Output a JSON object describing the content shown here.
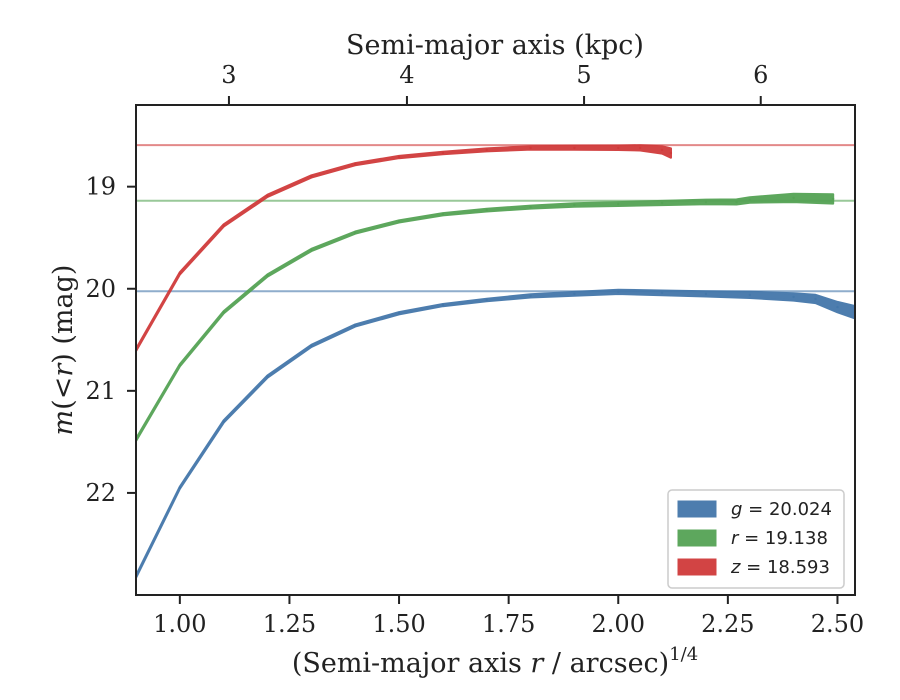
{
  "chart_data": {
    "type": "line",
    "title": "",
    "xlabel": "(Semi-major axis r / arcsec)^{1/4}",
    "xlabel_parts": [
      "(Semi-major axis ",
      "r",
      " / arcsec)",
      "1/4"
    ],
    "ylabel": "m(< r) (mag)",
    "ylabel_parts": [
      "m",
      "(<",
      "r",
      ")",
      " (mag)"
    ],
    "top_xlabel": "Semi-major axis (kpc)",
    "xlim": [
      0.9,
      2.54
    ],
    "ylim": [
      23.0,
      18.2
    ],
    "y_inverted": true,
    "x_ticks": [
      1.0,
      1.25,
      1.5,
      1.75,
      2.0,
      2.25,
      2.5
    ],
    "x_tick_labels": [
      "1.00",
      "1.25",
      "1.50",
      "1.75",
      "2.00",
      "2.25",
      "2.50"
    ],
    "y_ticks": [
      19,
      20,
      21,
      22
    ],
    "y_tick_labels": [
      "19",
      "20",
      "21",
      "22"
    ],
    "top_ticks_kpc": [
      3,
      4,
      5,
      6
    ],
    "top_tick_labels": [
      "3",
      "4",
      "5",
      "6"
    ],
    "top_ticks_x": [
      1.112,
      1.518,
      1.922,
      2.325
    ],
    "grid": false,
    "legend_position": "lower-right",
    "series": [
      {
        "name": "g = 20.024",
        "legend_var": "g",
        "legend_value": "20.024",
        "color": "#4477aa",
        "asymptote": 20.024,
        "x": [
          0.9,
          1.0,
          1.1,
          1.2,
          1.3,
          1.4,
          1.5,
          1.6,
          1.7,
          1.8,
          1.9,
          2.0,
          2.1,
          2.2,
          2.3,
          2.4,
          2.45,
          2.5,
          2.54
        ],
        "y": [
          22.82,
          21.95,
          21.3,
          20.86,
          20.56,
          20.36,
          20.24,
          20.16,
          20.11,
          20.07,
          20.05,
          20.03,
          20.04,
          20.05,
          20.06,
          20.08,
          20.1,
          20.18,
          20.23
        ],
        "band": [
          0.01,
          0.01,
          0.01,
          0.01,
          0.01,
          0.01,
          0.01,
          0.01,
          0.012,
          0.015,
          0.018,
          0.02,
          0.022,
          0.025,
          0.03,
          0.035,
          0.04,
          0.05,
          0.06
        ]
      },
      {
        "name": "r = 19.138",
        "legend_var": "r",
        "legend_value": "19.138",
        "color": "#55a355",
        "asymptote": 19.138,
        "x": [
          0.9,
          1.0,
          1.1,
          1.2,
          1.3,
          1.4,
          1.5,
          1.6,
          1.7,
          1.8,
          1.9,
          2.0,
          2.1,
          2.2,
          2.27,
          2.3,
          2.4,
          2.49
        ],
        "y": [
          21.48,
          20.75,
          20.23,
          19.87,
          19.62,
          19.45,
          19.34,
          19.27,
          19.23,
          19.2,
          19.18,
          19.17,
          19.16,
          19.15,
          19.15,
          19.13,
          19.11,
          19.12
        ],
        "band": [
          0.01,
          0.01,
          0.01,
          0.01,
          0.01,
          0.01,
          0.01,
          0.01,
          0.012,
          0.014,
          0.016,
          0.018,
          0.02,
          0.022,
          0.024,
          0.026,
          0.04,
          0.045
        ]
      },
      {
        "name": "z = 18.593",
        "legend_var": "z",
        "legend_value": "18.593",
        "color": "#d03a3a",
        "asymptote": 18.593,
        "x": [
          0.9,
          1.0,
          1.1,
          1.2,
          1.3,
          1.4,
          1.5,
          1.6,
          1.7,
          1.8,
          1.9,
          2.0,
          2.05,
          2.1,
          2.12
        ],
        "y": [
          20.6,
          19.85,
          19.38,
          19.09,
          18.9,
          18.78,
          18.71,
          18.67,
          18.64,
          18.62,
          18.62,
          18.62,
          18.62,
          18.64,
          18.67
        ],
        "band": [
          0.01,
          0.01,
          0.01,
          0.01,
          0.01,
          0.01,
          0.01,
          0.012,
          0.014,
          0.016,
          0.018,
          0.02,
          0.025,
          0.035,
          0.045
        ]
      }
    ]
  }
}
